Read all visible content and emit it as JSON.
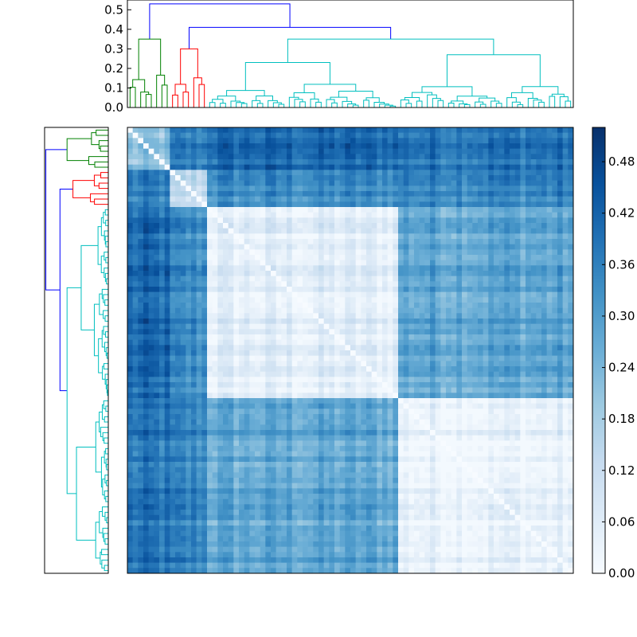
{
  "chart_data": {
    "type": "heatmap",
    "title": "",
    "xlabel": "",
    "ylabel": "",
    "matrix_size": 84,
    "clusters": [
      {
        "name": "green",
        "color": "#008000",
        "count": 8
      },
      {
        "name": "red",
        "color": "#ff0000",
        "count": 7
      },
      {
        "name": "cyan-a",
        "color": "#00bfbf",
        "count": 36
      },
      {
        "name": "cyan-b",
        "color": "#00bfbf",
        "count": 33
      }
    ],
    "link_color": "#0000ff",
    "block_mean_distance": [
      [
        0.2,
        0.35,
        0.4,
        0.38
      ],
      [
        0.35,
        0.12,
        0.33,
        0.35
      ],
      [
        0.4,
        0.33,
        0.05,
        0.28
      ],
      [
        0.38,
        0.35,
        0.28,
        0.04
      ]
    ],
    "top_dendrogram": {
      "ylim": [
        0,
        0.55
      ],
      "ticks": [
        "0.0",
        "0.1",
        "0.2",
        "0.3",
        "0.4",
        "0.5"
      ],
      "root_height": 0.53,
      "merge_heights": {
        "green_root": 0.35,
        "red_root": 0.3,
        "cyan_root": 0.41,
        "cyan_split": 0.35,
        "cyan_a_root": 0.23,
        "cyan_b_root": 0.27
      }
    },
    "colorbar": {
      "range": [
        0.0,
        0.52
      ],
      "ticks": [
        "0.00",
        "0.06",
        "0.12",
        "0.18",
        "0.24",
        "0.30",
        "0.36",
        "0.42",
        "0.48"
      ],
      "colormap": "Blues"
    }
  }
}
